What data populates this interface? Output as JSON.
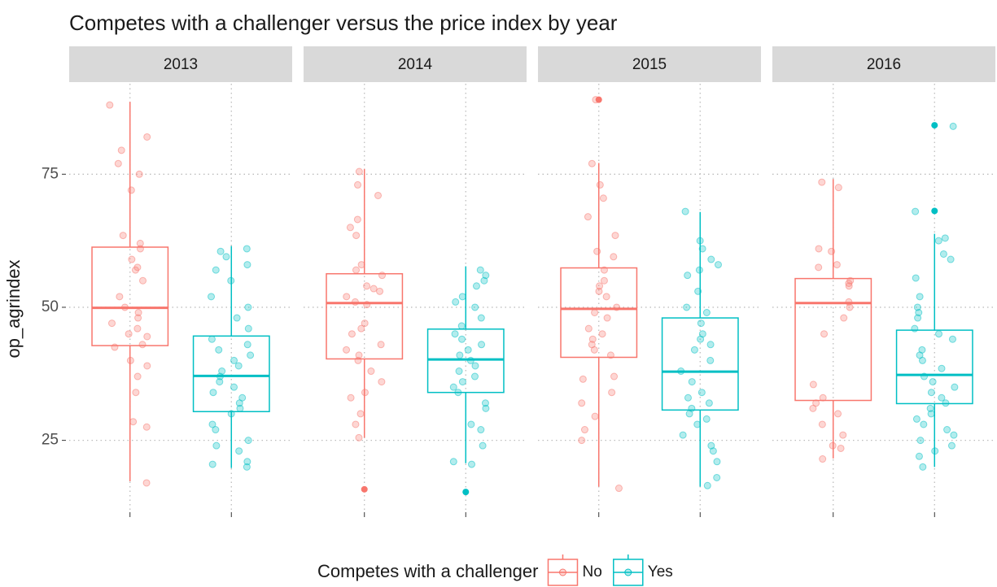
{
  "chart_data": {
    "type": "boxplot",
    "title": "Competes with a challenger versus the price index by year",
    "y_label": "op_agrindex",
    "legend_title": "Competes with a challenger",
    "legend_position": "bottom",
    "facets": [
      "2013",
      "2014",
      "2015",
      "2016"
    ],
    "ylim": [
      11.5,
      92
    ],
    "yticks": [
      25,
      50,
      75
    ],
    "grid": true,
    "series": [
      {
        "name": "No",
        "color": "#f8766d",
        "boxes": [
          {
            "low": 17.3,
            "q1": 42.8,
            "median": 49.9,
            "q3": 61.3,
            "high": 88.6,
            "outliers": []
          },
          {
            "low": 25.5,
            "q1": 40.3,
            "median": 50.8,
            "q3": 56.3,
            "high": 76,
            "outliers": [
              15.8
            ]
          },
          {
            "low": 16.3,
            "q1": 40.6,
            "median": 49.7,
            "q3": 57.4,
            "high": 77.1,
            "outliers": [
              89
            ]
          },
          {
            "low": 21.6,
            "q1": 32.5,
            "median": 50.8,
            "q3": 55.4,
            "high": 74.1,
            "outliers": []
          }
        ],
        "points": [
          [
            88,
            82,
            79.5,
            77,
            75,
            72,
            63.5,
            62,
            61,
            59,
            57.5,
            57,
            55,
            52,
            50,
            49,
            48,
            47,
            46,
            45,
            44.5,
            43,
            42.5,
            40,
            39,
            37,
            34,
            28.5,
            27.5,
            17
          ],
          [
            75.5,
            73,
            71,
            66.5,
            65,
            63.5,
            58,
            57,
            56,
            54,
            53.5,
            53,
            52,
            51,
            50.5,
            47,
            46,
            45,
            43,
            42,
            41,
            40,
            38,
            36,
            34,
            33,
            30,
            28,
            25.5
          ],
          [
            89,
            77,
            73,
            70.5,
            67,
            63.5,
            60.5,
            59.5,
            57,
            55,
            54,
            53,
            52,
            50,
            49,
            48,
            46,
            45,
            44,
            43,
            42,
            41,
            37,
            36.5,
            34,
            32,
            29.5,
            27,
            25,
            16
          ],
          [
            73.5,
            72.5,
            61,
            60.5,
            58,
            57.5,
            55,
            54.5,
            54,
            51,
            50,
            48,
            45,
            35.5,
            33,
            32,
            31,
            30,
            28,
            26,
            24,
            23.5,
            21.5
          ]
        ]
      },
      {
        "name": "Yes",
        "color": "#00bfc4",
        "boxes": [
          {
            "low": 19.8,
            "q1": 30.4,
            "median": 37.1,
            "q3": 44.6,
            "high": 61.5,
            "outliers": []
          },
          {
            "low": 20.7,
            "q1": 34,
            "median": 40.2,
            "q3": 45.9,
            "high": 57.7,
            "outliers": [
              15.3
            ]
          },
          {
            "low": 16.3,
            "q1": 30.7,
            "median": 37.9,
            "q3": 48,
            "high": 67.9,
            "outliers": []
          },
          {
            "low": 20,
            "q1": 31.9,
            "median": 37.3,
            "q3": 45.7,
            "high": 63.8,
            "outliers": [
              84.2,
              68.1
            ]
          }
        ],
        "points": [
          [
            61,
            60.5,
            59.5,
            58,
            57,
            55,
            52,
            50,
            48,
            46,
            44,
            43,
            42,
            41,
            40,
            39,
            38,
            37,
            36,
            35,
            34,
            33,
            32,
            31,
            30,
            28,
            27,
            25,
            24,
            23,
            21,
            20.5,
            20
          ],
          [
            57,
            56,
            55,
            54,
            52,
            51,
            50,
            48,
            46.5,
            45,
            44,
            43,
            42,
            41,
            40,
            39,
            38,
            37,
            36,
            35,
            34,
            32,
            31,
            28,
            27,
            24,
            21,
            20.5
          ],
          [
            68,
            62.5,
            61,
            59,
            58,
            57,
            56,
            53,
            50,
            49,
            47,
            45,
            44,
            43,
            42,
            40,
            38,
            36,
            34,
            33,
            32,
            31,
            30,
            29,
            28,
            26,
            24,
            23,
            21,
            18,
            16.5
          ],
          [
            84,
            68,
            63,
            62.5,
            60,
            59,
            55.5,
            52,
            50,
            49,
            48,
            46,
            45,
            44,
            42,
            41,
            40,
            38.5,
            37,
            36,
            35,
            34,
            33,
            32,
            31,
            30,
            29,
            28,
            27,
            26,
            25,
            24,
            23,
            22,
            20
          ]
        ]
      }
    ]
  }
}
